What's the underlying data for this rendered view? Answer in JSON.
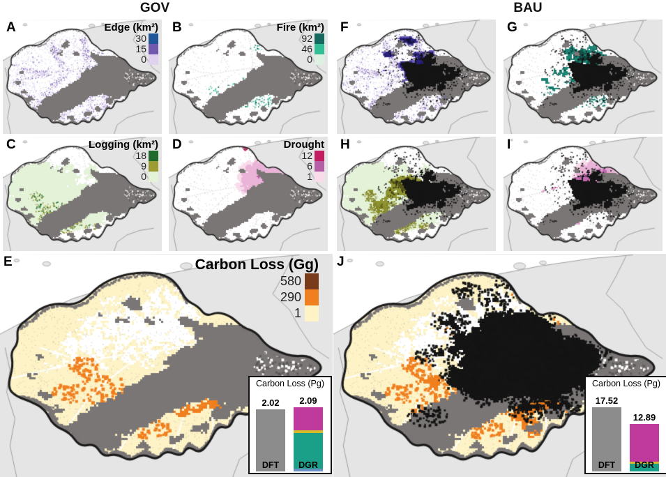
{
  "columns": [
    {
      "title": "GOV"
    },
    {
      "title": "BAU"
    }
  ],
  "panels": [
    {
      "id": "A",
      "scenario": "GOV",
      "variable": "edge",
      "legend": {
        "title": "Edge (km²)",
        "values": [
          "30",
          "15",
          "0"
        ]
      }
    },
    {
      "id": "B",
      "scenario": "GOV",
      "variable": "fire",
      "legend": {
        "title": "Fire (km²)",
        "values": [
          "92",
          "46",
          "0"
        ]
      }
    },
    {
      "id": "F",
      "scenario": "BAU",
      "variable": "edge"
    },
    {
      "id": "G",
      "scenario": "BAU",
      "variable": "fire"
    },
    {
      "id": "C",
      "scenario": "GOV",
      "variable": "logging",
      "legend": {
        "title": "Logging (km²)",
        "values": [
          "18",
          "9",
          "0"
        ]
      }
    },
    {
      "id": "D",
      "scenario": "GOV",
      "variable": "drought",
      "legend": {
        "title": "Drought",
        "values": [
          "12",
          "6",
          "1"
        ]
      }
    },
    {
      "id": "H",
      "scenario": "BAU",
      "variable": "logging"
    },
    {
      "id": "I",
      "scenario": "BAU",
      "variable": "drought"
    },
    {
      "id": "E",
      "scenario": "GOV",
      "variable": "carbon",
      "legend": {
        "title": "Carbon Loss (Gg)",
        "values": [
          "580",
          "290",
          "1"
        ]
      }
    },
    {
      "id": "J",
      "scenario": "BAU",
      "variable": "carbon"
    }
  ],
  "colormaps": {
    "edge": {
      "high": "#1f5799",
      "mid": "#7159ad",
      "low": "#ded2ef"
    },
    "fire": {
      "high": "#16695f",
      "mid": "#33bf95",
      "low": "#ddf0e2"
    },
    "logging": {
      "high": "#1e6b2d",
      "mid": "#9d9b33",
      "low": "#e4f2d8"
    },
    "drought": {
      "high": "#c41e63",
      "mid": "#b55fa6",
      "low": "#f8dcea"
    },
    "carbon": {
      "high": "#7a3b1a",
      "mid": "#f0801f",
      "low": "#fdf3c6"
    }
  },
  "map_colors": {
    "ocean": "#ffffff",
    "land": "#e5e5e5",
    "border": "#9e9e9e",
    "basin_fill": "#ffffff",
    "basin_outline": "#1c1c1c",
    "deforested": "#7b7676",
    "future_clearing": "#141414"
  },
  "insets": [
    {
      "panel": "E",
      "title": "Carbon Loss (Pg)",
      "bars": [
        {
          "label": "DFT",
          "value": "2.02"
        },
        {
          "label": "DGR",
          "value": "2.09"
        }
      ]
    },
    {
      "panel": "J",
      "title": "Carbon Loss (Pg)",
      "bars": [
        {
          "label": "DFT",
          "value": "17.52"
        },
        {
          "label": "DGR",
          "value": "12.89"
        }
      ]
    }
  ],
  "chart_data": [
    {
      "type": "bar",
      "panel": "E",
      "title": "Carbon Loss (Pg)",
      "categories": [
        "DFT",
        "DGR"
      ],
      "totals": [
        2.02,
        2.09
      ],
      "stacks": [
        [
          {
            "name": "deforestation-total",
            "color": "#8c8c8c",
            "value": 2.02
          }
        ],
        [
          {
            "name": "segment-blue",
            "color": "#6a8fc3",
            "value": 0.09
          },
          {
            "name": "segment-teal",
            "color": "#1aa089",
            "value": 1.17
          },
          {
            "name": "segment-yellow",
            "color": "#d4b92a",
            "value": 0.07
          },
          {
            "name": "segment-magenta",
            "color": "#c0399c",
            "value": 0.76
          }
        ]
      ]
    },
    {
      "type": "bar",
      "panel": "J",
      "title": "Carbon Loss (Pg)",
      "categories": [
        "DFT",
        "DGR"
      ],
      "totals": [
        17.52,
        12.89
      ],
      "stacks": [
        [
          {
            "name": "deforestation-total",
            "color": "#8c8c8c",
            "value": 17.52
          }
        ],
        [
          {
            "name": "segment-teal",
            "color": "#1aa089",
            "value": 2.1
          },
          {
            "name": "segment-yellow",
            "color": "#d4b92a",
            "value": 0.6
          },
          {
            "name": "segment-magenta",
            "color": "#c0399c",
            "value": 10.19
          }
        ]
      ]
    }
  ]
}
